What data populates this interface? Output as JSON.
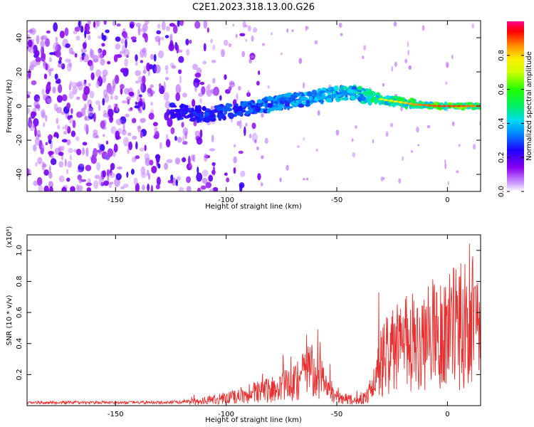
{
  "chart_data": [
    {
      "type": "heatmap",
      "title": "C2E1.2023.318.13.00.G26",
      "xlabel": "Height of straight line (km)",
      "ylabel": "Frequency (Hz)",
      "xlim": [
        -190,
        15
      ],
      "ylim": [
        -50,
        50
      ],
      "xticks": [
        -150,
        -100,
        -50,
        0
      ],
      "xtick_labels": [
        "-150",
        "-100",
        "-50",
        "0"
      ],
      "yticks": [
        -40,
        -20,
        0,
        20,
        40
      ],
      "ytick_labels": [
        "-40",
        "-20",
        "0",
        "20",
        "40"
      ],
      "colorbar": {
        "label": "Normalized spectral amplitude",
        "range": [
          0,
          1
        ],
        "ticks": [
          0,
          0.2,
          0.4,
          0.6,
          0.8
        ],
        "tick_labels": [
          "0.0",
          "0.2",
          "0.4",
          "0.6",
          "0.8"
        ],
        "colormap": "rainbow (violet low, red high)"
      },
      "ridge": {
        "x": [
          -125,
          -110,
          -100,
          -90,
          -80,
          -70,
          -60,
          -50,
          -42,
          -35,
          -25,
          -15,
          -5,
          5,
          15
        ],
        "y": [
          -3,
          -5,
          -3,
          -1,
          1,
          3,
          5,
          7,
          8,
          5,
          3,
          1,
          0,
          0,
          0
        ],
        "amplitude": [
          0.2,
          0.25,
          0.3,
          0.35,
          0.4,
          0.45,
          0.5,
          0.55,
          0.6,
          0.65,
          0.75,
          0.85,
          0.9,
          0.9,
          0.85
        ]
      },
      "noise_region_x": [
        -190,
        -105
      ]
    },
    {
      "type": "line",
      "xlabel": "Height of straight line (km)",
      "ylabel": "SNR (10 * v/v)",
      "scale_label": "(x10⁴)",
      "xlim": [
        -190,
        15
      ],
      "ylim": [
        0,
        1.1
      ],
      "xticks": [
        -150,
        -100,
        -50,
        0
      ],
      "xtick_labels": [
        "-150",
        "-100",
        "-50",
        "0"
      ],
      "yticks": [
        0.2,
        0.4,
        0.6,
        0.8,
        1.0
      ],
      "ytick_labels": [
        "0.2",
        "0.4",
        "0.6",
        "0.8",
        "1.0"
      ],
      "color": "#e83030",
      "series": [
        {
          "x": [
            -190,
            -170,
            -150,
            -130,
            -120,
            -110,
            -100,
            -95,
            -90,
            -85,
            -80,
            -75,
            -70,
            -65,
            -62,
            -58,
            -55,
            -50,
            -45,
            -40,
            -36,
            -33,
            -30,
            -28,
            -25,
            -20,
            -15,
            -10,
            -5,
            0,
            5,
            10,
            15
          ],
          "y": [
            0.02,
            0.02,
            0.02,
            0.02,
            0.025,
            0.04,
            0.06,
            0.08,
            0.1,
            0.12,
            0.13,
            0.15,
            0.18,
            0.25,
            0.3,
            0.25,
            0.15,
            0.07,
            0.05,
            0.05,
            0.08,
            0.2,
            0.35,
            0.4,
            0.45,
            0.5,
            0.52,
            0.55,
            0.6,
            0.62,
            0.65,
            0.68,
            0.66
          ]
        }
      ]
    }
  ]
}
